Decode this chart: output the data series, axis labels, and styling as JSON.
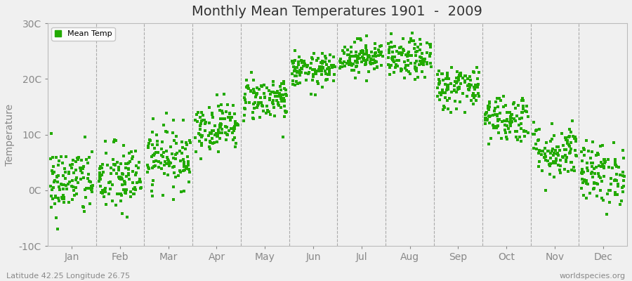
{
  "title": "Monthly Mean Temperatures 1901  -  2009",
  "ylabel": "Temperature",
  "xlabel_labels": [
    "Jan",
    "Feb",
    "Mar",
    "Apr",
    "May",
    "Jun",
    "Jul",
    "Aug",
    "Sep",
    "Oct",
    "Nov",
    "Dec"
  ],
  "ytick_labels": [
    "-10C",
    "0C",
    "10C",
    "20C",
    "30C"
  ],
  "ytick_values": [
    -10,
    0,
    10,
    20,
    30
  ],
  "ylim": [
    -10,
    30
  ],
  "dot_color": "#22aa00",
  "bg_color": "#f0f0f0",
  "plot_bg_color": "#f0f0f0",
  "legend_label": "Mean Temp",
  "bottom_left_text": "Latitude 42.25 Longitude 26.75",
  "bottom_right_text": "worldspecies.org",
  "monthly_means": [
    1.5,
    2.0,
    6.0,
    11.5,
    16.5,
    21.5,
    24.0,
    23.5,
    18.5,
    13.0,
    7.0,
    3.0
  ],
  "monthly_stds": [
    3.2,
    3.2,
    2.8,
    2.2,
    2.0,
    1.5,
    1.5,
    1.8,
    2.0,
    2.2,
    2.5,
    2.8
  ],
  "n_years": 109,
  "random_seed": 42,
  "dot_size": 5,
  "title_fontsize": 14,
  "axis_fontsize": 10,
  "tick_color": "#888888",
  "dashed_line_color": "#aaaaaa",
  "spine_color": "#bbbbbb"
}
